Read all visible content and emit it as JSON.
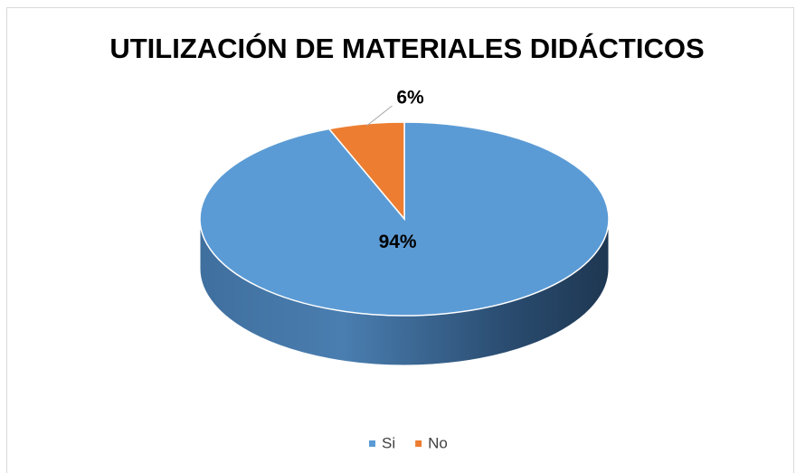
{
  "chart_data": {
    "type": "pie",
    "title": "UTILIZACIÓN DE MATERIALES DIDÁCTICOS",
    "categories": [
      "Si",
      "No"
    ],
    "values": [
      94,
      6
    ],
    "value_labels": [
      "94%",
      "6%"
    ],
    "colors": [
      "#5b9bd5",
      "#ed7d31"
    ],
    "legend": "bottom",
    "style": "3d"
  }
}
